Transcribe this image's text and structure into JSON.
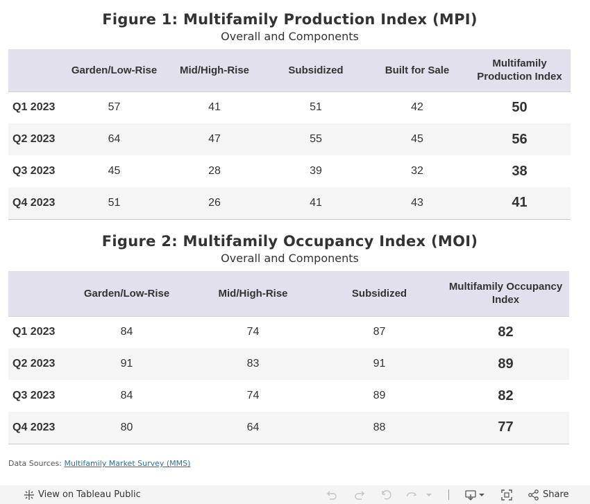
{
  "figure1": {
    "title": "Figure 1: Multifamily Production Index (MPI)",
    "subtitle": "Overall and Components",
    "headers": [
      "Garden/Low-Rise",
      "Mid/High-Rise",
      "Subsidized",
      "Built for Sale",
      "Multifamily Production Index"
    ],
    "rows": [
      {
        "label": "Q1 2023",
        "values": [
          "57",
          "41",
          "51",
          "42"
        ],
        "index": "50"
      },
      {
        "label": "Q2 2023",
        "values": [
          "64",
          "47",
          "55",
          "45"
        ],
        "index": "56"
      },
      {
        "label": "Q3 2023",
        "values": [
          "45",
          "28",
          "39",
          "32"
        ],
        "index": "38"
      },
      {
        "label": "Q4 2023",
        "values": [
          "51",
          "26",
          "41",
          "43"
        ],
        "index": "41"
      }
    ]
  },
  "figure2": {
    "title": "Figure 2: Multifamily Occupancy Index (MOI)",
    "subtitle": "Overall and Components",
    "headers": [
      "Garden/Low-Rise",
      "Mid/High-Rise",
      "Subsidized",
      "Multifamily Occupancy Index"
    ],
    "rows": [
      {
        "label": "Q1 2023",
        "values": [
          "84",
          "74",
          "87"
        ],
        "index": "82"
      },
      {
        "label": "Q2 2023",
        "values": [
          "91",
          "83",
          "91"
        ],
        "index": "89"
      },
      {
        "label": "Q3 2023",
        "values": [
          "84",
          "74",
          "89"
        ],
        "index": "82"
      },
      {
        "label": "Q4 2023",
        "values": [
          "80",
          "64",
          "88"
        ],
        "index": "77"
      }
    ]
  },
  "sources": {
    "prefix": "Data Sources:",
    "link_text": "Multifamily Market Survey (MMS)"
  },
  "toolbar": {
    "view_label": "View on Tableau Public",
    "share_label": "Share",
    "icons": [
      "tableau-logo-icon",
      "undo-icon",
      "redo-icon",
      "revert-icon",
      "refresh-icon",
      "chevron-down-icon",
      "download-icon",
      "fullscreen-icon",
      "share-icon"
    ]
  },
  "colors": {
    "header_bg": "#e3e0ed",
    "alt_row_bg": "#f5f5f5",
    "link": "#2e6e9e",
    "toolbar_bg": "#f4f4f4"
  }
}
